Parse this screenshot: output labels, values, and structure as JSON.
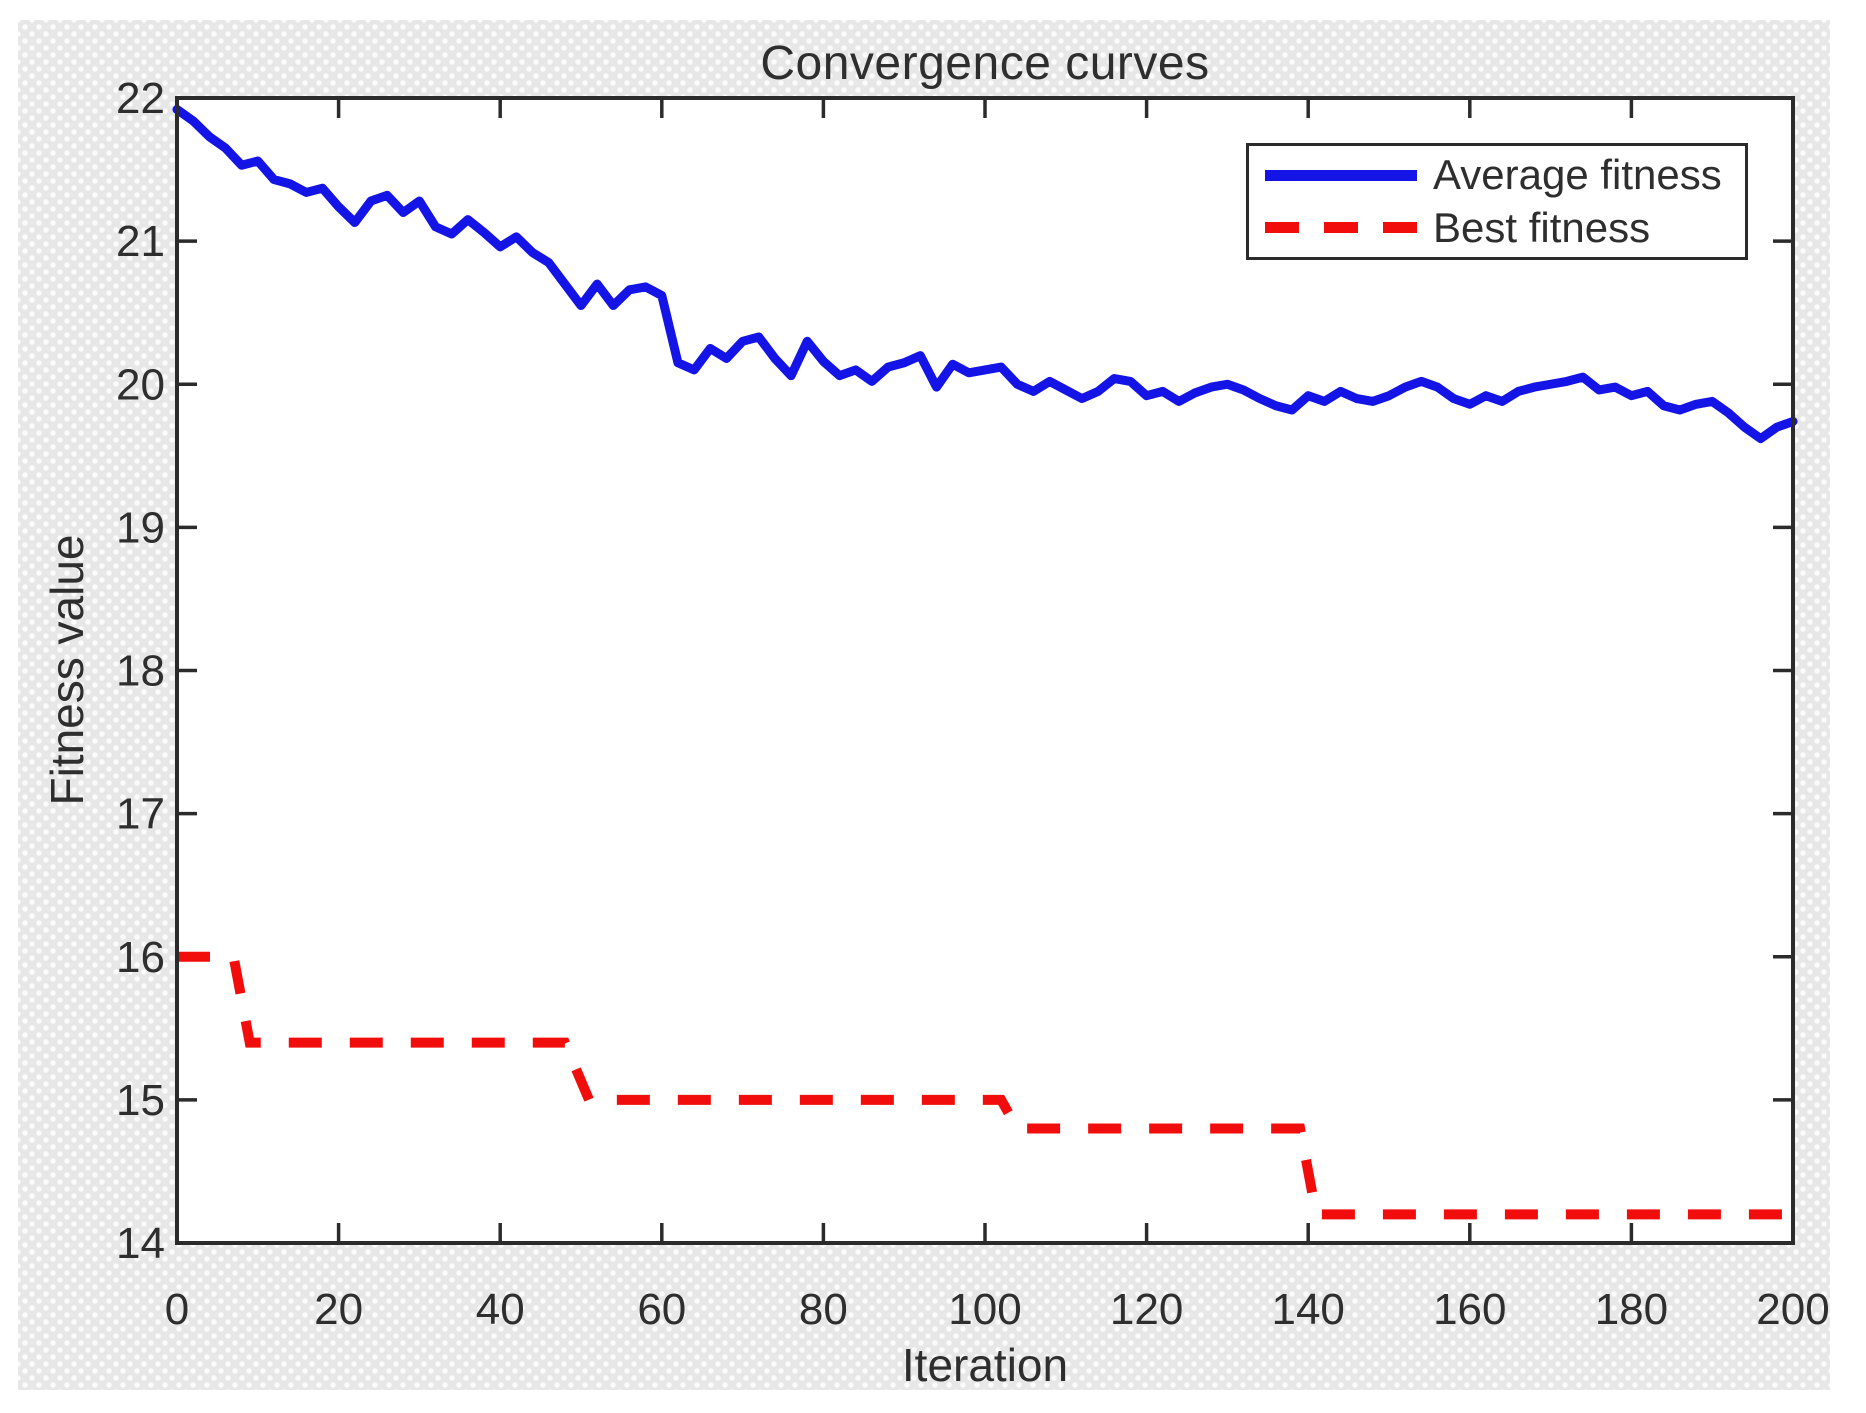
{
  "colors": {
    "average_line": "#1414e6",
    "best_line": "#f20d0d",
    "axis": "#2b2b2b",
    "text": "#2e2e2e",
    "panel_background": "#e7e7e7",
    "panel_dots": "#fbfbfb",
    "plot_background": "#ffffff"
  },
  "chart_data": {
    "type": "line",
    "title": "Convergence curves",
    "xlabel": "Iteration",
    "ylabel": "Fitness value",
    "xlim": [
      0,
      200
    ],
    "ylim": [
      14,
      22
    ],
    "x_ticks": [
      0,
      20,
      40,
      60,
      80,
      100,
      120,
      140,
      160,
      180,
      200
    ],
    "y_ticks": [
      14,
      15,
      16,
      17,
      18,
      19,
      20,
      21,
      22
    ],
    "grid": false,
    "legend_position": "upper-right-inside",
    "series": [
      {
        "name": "Average fitness",
        "color": "#1414e6",
        "line_style": "solid",
        "x": [
          0,
          2,
          4,
          6,
          8,
          10,
          12,
          14,
          16,
          18,
          20,
          22,
          24,
          26,
          28,
          30,
          32,
          34,
          36,
          38,
          40,
          42,
          44,
          46,
          48,
          50,
          52,
          54,
          56,
          58,
          60,
          62,
          64,
          66,
          68,
          70,
          72,
          74,
          76,
          78,
          80,
          82,
          84,
          86,
          88,
          90,
          92,
          94,
          96,
          98,
          100,
          102,
          104,
          106,
          108,
          110,
          112,
          114,
          116,
          118,
          120,
          122,
          124,
          126,
          128,
          130,
          132,
          134,
          136,
          138,
          140,
          142,
          144,
          146,
          148,
          150,
          152,
          154,
          156,
          158,
          160,
          162,
          164,
          166,
          168,
          170,
          172,
          174,
          176,
          178,
          180,
          182,
          184,
          186,
          188,
          190,
          192,
          194,
          196,
          198,
          200
        ],
        "values": [
          21.92,
          21.84,
          21.73,
          21.65,
          21.53,
          21.56,
          21.43,
          21.4,
          21.34,
          21.37,
          21.24,
          21.13,
          21.28,
          21.32,
          21.2,
          21.28,
          21.1,
          21.05,
          21.15,
          21.06,
          20.96,
          21.03,
          20.92,
          20.85,
          20.7,
          20.55,
          20.7,
          20.55,
          20.66,
          20.68,
          20.62,
          20.15,
          20.1,
          20.25,
          20.18,
          20.3,
          20.33,
          20.18,
          20.06,
          20.3,
          20.16,
          20.06,
          20.1,
          20.02,
          20.12,
          20.15,
          20.2,
          19.98,
          20.14,
          20.08,
          20.1,
          20.12,
          20.0,
          19.95,
          20.02,
          19.96,
          19.9,
          19.95,
          20.04,
          20.02,
          19.92,
          19.95,
          19.88,
          19.94,
          19.98,
          20.0,
          19.96,
          19.9,
          19.85,
          19.82,
          19.92,
          19.88,
          19.95,
          19.9,
          19.88,
          19.92,
          19.98,
          20.02,
          19.98,
          19.9,
          19.86,
          19.92,
          19.88,
          19.95,
          19.98,
          20.0,
          20.02,
          20.05,
          19.96,
          19.98,
          19.92,
          19.95,
          19.85,
          19.82,
          19.86,
          19.88,
          19.8,
          19.7,
          19.62,
          19.7,
          19.74
        ]
      },
      {
        "name": "Best fitness",
        "color": "#f20d0d",
        "line_style": "dashed",
        "points": [
          [
            0,
            16
          ],
          [
            7,
            16
          ],
          [
            9,
            15.4
          ],
          [
            48,
            15.4
          ],
          [
            51,
            15
          ],
          [
            102,
            15
          ],
          [
            104,
            14.8
          ],
          [
            139,
            14.8
          ],
          [
            141,
            14.2
          ],
          [
            200,
            14.2
          ]
        ]
      }
    ]
  }
}
